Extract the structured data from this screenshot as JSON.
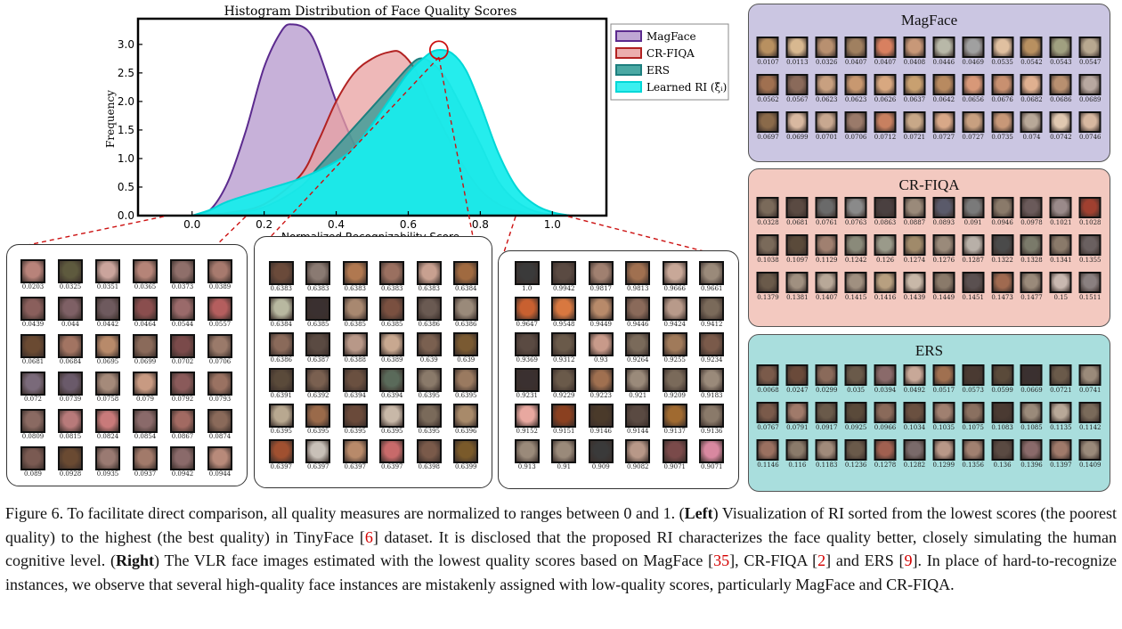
{
  "chart_data": {
    "type": "area",
    "title": "Histogram Distribution of Face Quality Scores",
    "xlabel": "Normalized Recognizability Score",
    "ylabel": "Frequency",
    "xlim": [
      -0.15,
      1.15
    ],
    "ylim": [
      0,
      3.45
    ],
    "xticks": [
      "0.0",
      "0.2",
      "0.4",
      "0.6",
      "0.8",
      "1.0"
    ],
    "yticks": [
      "0.0",
      "0.5",
      "1.0",
      "1.5",
      "2.0",
      "2.5",
      "3.0"
    ],
    "legend_position": "outside-right",
    "series": [
      {
        "name": "MagFace",
        "color": "#5b2a8e",
        "fill": "#b497cc",
        "x": [
          0.0,
          0.05,
          0.1,
          0.15,
          0.2,
          0.25,
          0.28,
          0.32,
          0.35,
          0.4,
          0.45,
          0.5,
          0.55,
          0.6,
          0.65,
          0.7,
          0.8,
          0.9,
          1.0
        ],
        "y": [
          0.0,
          0.1,
          0.6,
          1.5,
          2.6,
          3.25,
          3.35,
          3.25,
          2.9,
          2.0,
          1.25,
          0.75,
          0.45,
          0.28,
          0.16,
          0.09,
          0.03,
          0.01,
          0.0
        ]
      },
      {
        "name": "CR-FIQA",
        "color": "#b22222",
        "fill": "#e8a0a0",
        "x": [
          0.0,
          0.1,
          0.2,
          0.3,
          0.35,
          0.4,
          0.45,
          0.5,
          0.55,
          0.58,
          0.62,
          0.66,
          0.7,
          0.75,
          0.8,
          0.85,
          0.9,
          0.95,
          1.0
        ],
        "y": [
          0.0,
          0.05,
          0.2,
          0.7,
          1.3,
          2.0,
          2.5,
          2.75,
          2.87,
          2.85,
          2.55,
          2.0,
          1.5,
          0.9,
          0.45,
          0.2,
          0.08,
          0.02,
          0.0
        ]
      },
      {
        "name": "ERS",
        "color": "#1d7f7f",
        "fill": "#2a9a94",
        "x": [
          0.0,
          0.1,
          0.2,
          0.3,
          0.35,
          0.4,
          0.45,
          0.5,
          0.55,
          0.6,
          0.63,
          0.66,
          0.7,
          0.74,
          0.8,
          0.85,
          0.9,
          0.95,
          1.0,
          1.05
        ],
        "y": [
          0.0,
          0.03,
          0.15,
          0.5,
          0.85,
          1.2,
          1.55,
          1.9,
          2.25,
          2.6,
          2.75,
          2.7,
          2.45,
          2.0,
          1.25,
          0.6,
          0.25,
          0.08,
          0.02,
          0.0
        ]
      },
      {
        "name": "Learned RI (ξ̂ᵢ)",
        "color": "#00d7d7",
        "fill": "#19ecec",
        "x": [
          0.0,
          0.05,
          0.1,
          0.2,
          0.3,
          0.4,
          0.45,
          0.5,
          0.55,
          0.6,
          0.65,
          0.68,
          0.72,
          0.76,
          0.8,
          0.85,
          0.9,
          0.95,
          1.0,
          1.05
        ],
        "y": [
          0.0,
          0.1,
          0.25,
          0.45,
          0.65,
          0.95,
          1.2,
          1.6,
          2.05,
          2.5,
          2.8,
          2.9,
          2.85,
          2.55,
          1.95,
          1.1,
          0.5,
          0.2,
          0.06,
          0.0
        ]
      }
    ],
    "annotation": {
      "type": "circle",
      "x": 0.685,
      "y": 2.9
    }
  },
  "left_panels": [
    {
      "scores": [
        "0.0203",
        "0.0325",
        "0.0351",
        "0.0365",
        "0.0373",
        "0.0389",
        "0.0439",
        "0.044",
        "0.0442",
        "0.0464",
        "0.0544",
        "0.0557",
        "0.0681",
        "0.0684",
        "0.0695",
        "0.0699",
        "0.0702",
        "0.0706",
        "0.072",
        "0.0739",
        "0.0758",
        "0.079",
        "0.0792",
        "0.0793",
        "0.0809",
        "0.0815",
        "0.0824",
        "0.0854",
        "0.0867",
        "0.0874",
        "0.089",
        "0.0928",
        "0.0935",
        "0.0937",
        "0.0942",
        "0.0944"
      ],
      "colors": [
        "#b8837a",
        "#5e5a3e",
        "#caa49c",
        "#b58478",
        "#8f6f6a",
        "#a77a6e",
        "#8a5f5c",
        "#7e6065",
        "#6e5a5e",
        "#8a4e4e",
        "#9a6a6a",
        "#b45e5e",
        "#6a4a32",
        "#a27462",
        "#b88a6a",
        "#8a6a5a",
        "#7a4a4a",
        "#9a7a6a",
        "#7a6a7a",
        "#6a5a6a",
        "#a58a7a",
        "#c89a82",
        "#8a5a5a",
        "#9a7262",
        "#8a6a62",
        "#b87a7a",
        "#c87a7a",
        "#8a6a6a",
        "#a26a62",
        "#8a6a5a",
        "#7a5a52",
        "#6a4a32",
        "#9a7a72",
        "#a27a6a",
        "#8a6a6a",
        "#b88a7a"
      ]
    },
    {
      "scores": [
        "0.6383",
        "0.6383",
        "0.6383",
        "0.6383",
        "0.6383",
        "0.6384",
        "0.6384",
        "0.6385",
        "0.6385",
        "0.6385",
        "0.6386",
        "0.6386",
        "0.6386",
        "0.6387",
        "0.6388",
        "0.6389",
        "0.639",
        "0.639",
        "0.6391",
        "0.6392",
        "0.6394",
        "0.6394",
        "0.6395",
        "0.6395",
        "0.6395",
        "0.6395",
        "0.6395",
        "0.6395",
        "0.6395",
        "0.6396",
        "0.6397",
        "0.6397",
        "0.6397",
        "0.6397",
        "0.6398",
        "0.6399"
      ],
      "colors": [
        "#6a4a3a",
        "#8a7a72",
        "#b07850",
        "#9a7060",
        "#c8a090",
        "#a06a40",
        "#b8b8a0",
        "#3a3030",
        "#a88870",
        "#7a5040",
        "#6a5a52",
        "#9a8a7a",
        "#8a6a5a",
        "#5a4a42",
        "#b89888",
        "#c8a890",
        "#7a6050",
        "#7a5a32",
        "#5a4a3a",
        "#7a6050",
        "#6a5040",
        "#5a6a5a",
        "#8a7a6a",
        "#9a7a60",
        "#b8a890",
        "#9a6a4a",
        "#6a4a3a",
        "#c8b8a8",
        "#7a6a5a",
        "#a88a6a",
        "#a05030",
        "#c8c0b8",
        "#b88a6a",
        "#c86a6a",
        "#7a5a4a",
        "#7a5a2a"
      ]
    },
    {
      "scores": [
        "1.0",
        "0.9942",
        "0.9817",
        "0.9813",
        "0.9666",
        "0.9661",
        "0.9647",
        "0.9548",
        "0.9449",
        "0.9446",
        "0.9424",
        "0.9412",
        "0.9369",
        "0.9312",
        "0.93",
        "0.9264",
        "0.9255",
        "0.9234",
        "0.9231",
        "0.9229",
        "0.9223",
        "0.921",
        "0.9209",
        "0.9183",
        "0.9152",
        "0.9151",
        "0.9146",
        "0.9144",
        "0.9137",
        "0.9136",
        "0.913",
        "0.91",
        "0.909",
        "0.9082",
        "0.9071",
        "0.9071"
      ],
      "colors": [
        "#3a3a3a",
        "#5a4a42",
        "#a08070",
        "#a07050",
        "#c8a898",
        "#9a8a7a",
        "#c86030",
        "#d87840",
        "#b88a6a",
        "#8a6a5a",
        "#b89a8a",
        "#7a6a5a",
        "#5a4a42",
        "#6a5a4a",
        "#c89a8a",
        "#7a6a5a",
        "#a07a5a",
        "#7a5a4a",
        "#3a3030",
        "#6a5a4a",
        "#a07050",
        "#9a8a7a",
        "#7a6a5a",
        "#9a8a7a",
        "#e8a8a0",
        "#8a4020",
        "#4a3a2a",
        "#5a4a42",
        "#a06a30",
        "#8a7a6a",
        "#9a8a7a",
        "#9a8a7a",
        "#3a3a3a",
        "#b89888",
        "#7a4a4a",
        "#d888a0"
      ]
    }
  ],
  "right_panels": [
    {
      "title": "MagFace",
      "bg": "#cbc6e2",
      "scores": [
        "0.0107",
        "0.0113",
        "0.0326",
        "0.0407",
        "0.0407",
        "0.0408",
        "0.0446",
        "0.0469",
        "0.0535",
        "0.0542",
        "0.0543",
        "0.0547",
        "0.0562",
        "0.0567",
        "0.0623",
        "0.0623",
        "0.0626",
        "0.0637",
        "0.0642",
        "0.0656",
        "0.0676",
        "0.0682",
        "0.0686",
        "0.0689",
        "0.0697",
        "0.0699",
        "0.0701",
        "0.0706",
        "0.0712",
        "0.0721",
        "0.0727",
        "0.0727",
        "0.0735",
        "0.074",
        "0.0742",
        "0.0746"
      ],
      "colors": [
        "#b89060",
        "#d8b890",
        "#b89070",
        "#a08060",
        "#d88060",
        "#c89878",
        "#b8b8a8",
        "#a0a0a0",
        "#e0c0a0",
        "#b89060",
        "#a0a080",
        "#b8a890",
        "#a07050",
        "#8a6a5a",
        "#c8a080",
        "#c89870",
        "#d8a880",
        "#c8a070",
        "#b88a60",
        "#d89878",
        "#c89070",
        "#e0b090",
        "#b89070",
        "#b8a8a0",
        "#8a6a4a",
        "#d8b8a0",
        "#c8a890",
        "#9a7a6a",
        "#c88060",
        "#c8a888",
        "#d8a888",
        "#c8a080",
        "#c89878",
        "#b8a898",
        "#e0c8b0",
        "#d8b8a0"
      ]
    },
    {
      "title": "CR-FIQA",
      "bg": "#f3c9c0",
      "scores": [
        "0.0328",
        "0.0681",
        "0.0761",
        "0.0763",
        "0.0863",
        "0.0887",
        "0.0893",
        "0.091",
        "0.0946",
        "0.0978",
        "0.1021",
        "0.1028",
        "0.1038",
        "0.1097",
        "0.1129",
        "0.1242",
        "0.126",
        "0.1274",
        "0.1276",
        "0.1287",
        "0.1322",
        "0.1328",
        "0.1341",
        "0.1355",
        "0.1379",
        "0.1381",
        "0.1407",
        "0.1415",
        "0.1416",
        "0.1439",
        "0.1449",
        "0.1451",
        "0.1473",
        "0.1477",
        "0.15",
        "0.1511"
      ],
      "colors": [
        "#7a6a5a",
        "#5a4a42",
        "#6a6a6a",
        "#8a8a8a",
        "#4a4040",
        "#9a8a7a",
        "#5a5a6a",
        "#7a7a7a",
        "#8a7a6a",
        "#6a5a5a",
        "#9a8a8a",
        "#a04030",
        "#7a6a5a",
        "#5a4a3a",
        "#a08070",
        "#8a8a7a",
        "#9a9a8a",
        "#a08a6a",
        "#9a8a7a",
        "#b8b0a8",
        "#4a4a4a",
        "#7a7a6a",
        "#8a7a6a",
        "#6a6060",
        "#6a5a4a",
        "#a09080",
        "#b8a898",
        "#a09080",
        "#b8a080",
        "#c8b8a8",
        "#8a7a6a",
        "#5a5050",
        "#a06a50",
        "#9a8a7a",
        "#c8b8b0",
        "#8a8080"
      ]
    },
    {
      "title": "ERS",
      "bg": "#a9dedd",
      "scores": [
        "0.0068",
        "0.0247",
        "0.0299",
        "0.035",
        "0.0394",
        "0.0492",
        "0.0517",
        "0.0573",
        "0.0599",
        "0.0669",
        "0.0721",
        "0.0741",
        "0.0767",
        "0.0791",
        "0.0917",
        "0.0925",
        "0.0966",
        "0.1034",
        "0.1035",
        "0.1075",
        "0.1083",
        "0.1085",
        "0.1135",
        "0.1142",
        "0.1146",
        "0.116",
        "0.1183",
        "0.1236",
        "0.1278",
        "0.1282",
        "0.1299",
        "0.1356",
        "0.136",
        "0.1396",
        "0.1397",
        "0.1409"
      ],
      "colors": [
        "#7a5a4a",
        "#6a4a3a",
        "#8a6a5a",
        "#6a5a4a",
        "#8a6a6a",
        "#c8a898",
        "#a07050",
        "#4a3a32",
        "#5a4a3a",
        "#3a3030",
        "#6a5a4a",
        "#9a8a7a",
        "#7a5a4a",
        "#a07a6a",
        "#6a5a4a",
        "#5a4a3a",
        "#8a6a5a",
        "#6a5040",
        "#a08070",
        "#8a7060",
        "#4a3a32",
        "#9a8a7a",
        "#b8a898",
        "#7a6a5a",
        "#9a7060",
        "#8a7a6a",
        "#a08a7a",
        "#6a5a4a",
        "#a06050",
        "#7a6a6a",
        "#b89888",
        "#a08070",
        "#5a4a42",
        "#8a6a6a",
        "#a07a6a",
        "#9a8a7a"
      ]
    }
  ],
  "caption": {
    "figure_label": "Figure 6.",
    "p1": " To facilitate direct comparison, all quality measures are normalized to ranges between 0 and 1. (",
    "left_word": "Left",
    "p2": ") Visualization of RI sorted from the lowest scores (the poorest quality) to the highest (the best quality) in TinyFace [",
    "ref1": "6",
    "p3": "] dataset.  It is disclosed that the proposed RI characterizes the face quality better, closely simulating the human cognitive level.  (",
    "right_word": "Right",
    "p4": ") The VLR face images estimated with the lowest quality scores based on MagFace [",
    "ref2": "35",
    "p5": "], CR-FIQA [",
    "ref3": "2",
    "p6": "] and ERS [",
    "ref4": "9",
    "p7": "]. In place of hard-to-recognize instances, we observe that several high-quality face instances are mistakenly assigned with low-quality scores, particularly MagFace and CR-FIQA."
  }
}
